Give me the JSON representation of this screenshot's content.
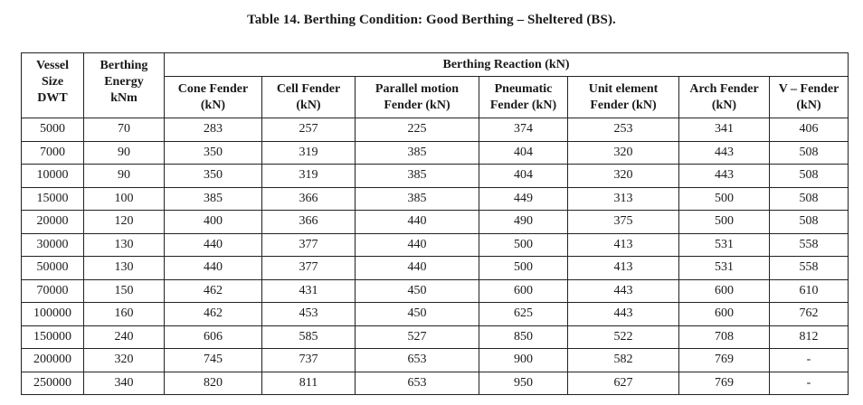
{
  "caption": "Table 14. Berthing Condition: Good Berthing – Sheltered (BS).",
  "table": {
    "vessel_header": [
      "Vessel",
      "Size",
      "DWT"
    ],
    "energy_header": [
      "Berthing",
      "Energy",
      "kNm"
    ],
    "reaction_group": "Berthing Reaction (kN)",
    "fender_headers": [
      [
        "Cone Fender",
        "(kN)"
      ],
      [
        "Cell Fender",
        "(kN)"
      ],
      [
        "Parallel motion",
        "Fender (kN)"
      ],
      [
        "Pneumatic",
        "Fender (kN)"
      ],
      [
        "Unit element",
        "Fender (kN)"
      ],
      [
        "Arch Fender",
        "(kN)"
      ],
      [
        "V – Fender",
        "(kN)"
      ]
    ],
    "rows": [
      [
        "5000",
        "70",
        "283",
        "257",
        "225",
        "374",
        "253",
        "341",
        "406"
      ],
      [
        "7000",
        "90",
        "350",
        "319",
        "385",
        "404",
        "320",
        "443",
        "508"
      ],
      [
        "10000",
        "90",
        "350",
        "319",
        "385",
        "404",
        "320",
        "443",
        "508"
      ],
      [
        "15000",
        "100",
        "385",
        "366",
        "385",
        "449",
        "313",
        "500",
        "508"
      ],
      [
        "20000",
        "120",
        "400",
        "366",
        "440",
        "490",
        "375",
        "500",
        "508"
      ],
      [
        "30000",
        "130",
        "440",
        "377",
        "440",
        "500",
        "413",
        "531",
        "558"
      ],
      [
        "50000",
        "130",
        "440",
        "377",
        "440",
        "500",
        "413",
        "531",
        "558"
      ],
      [
        "70000",
        "150",
        "462",
        "431",
        "450",
        "600",
        "443",
        "600",
        "610"
      ],
      [
        "100000",
        "160",
        "462",
        "453",
        "450",
        "625",
        "443",
        "600",
        "762"
      ],
      [
        "150000",
        "240",
        "606",
        "585",
        "527",
        "850",
        "522",
        "708",
        "812"
      ],
      [
        "200000",
        "320",
        "745",
        "737",
        "653",
        "900",
        "582",
        "769",
        "-"
      ],
      [
        "250000",
        "340",
        "820",
        "811",
        "653",
        "950",
        "627",
        "769",
        "-"
      ]
    ]
  }
}
